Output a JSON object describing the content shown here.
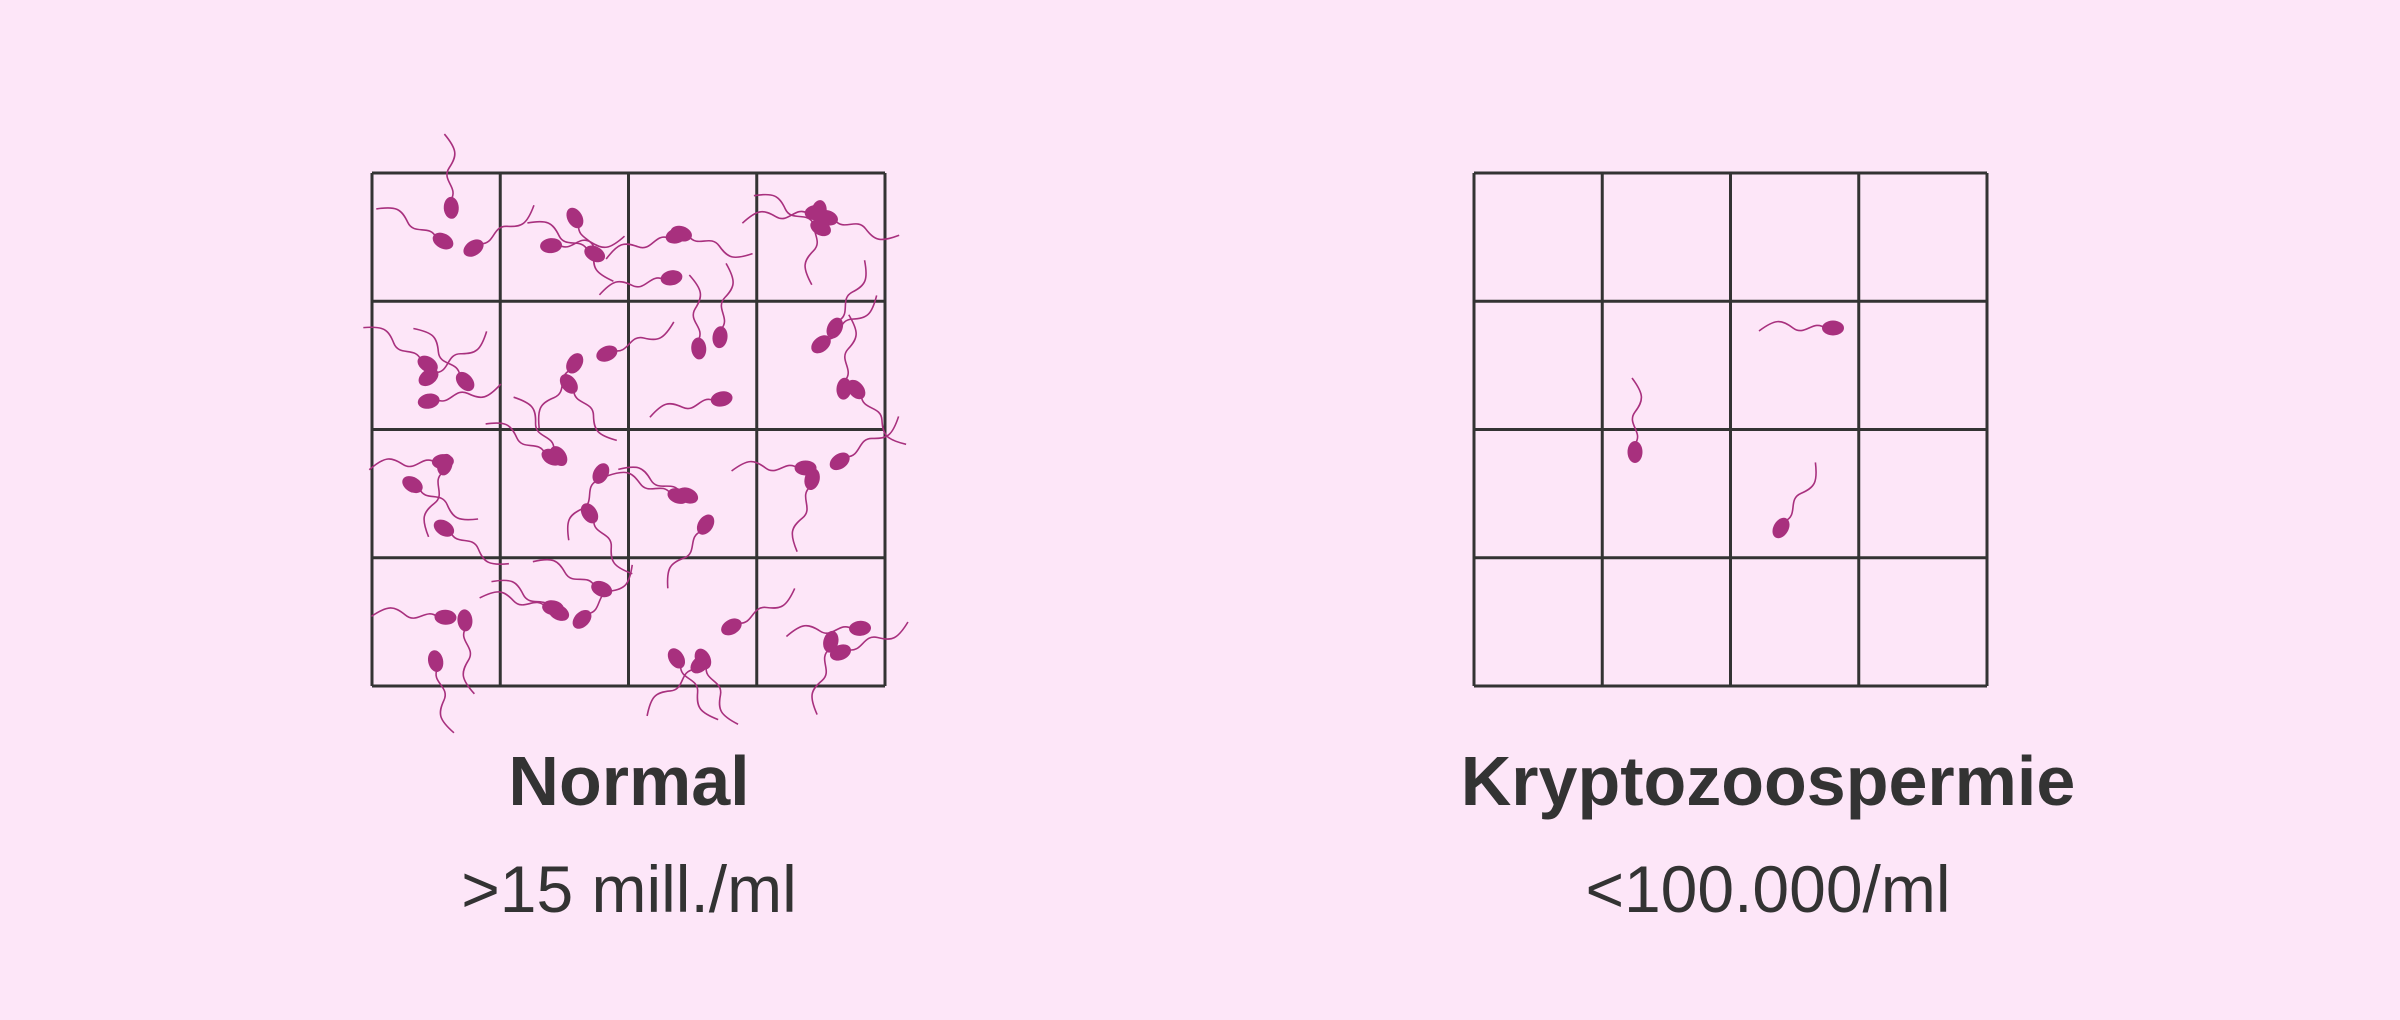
{
  "panels": [
    {
      "title": "Normal",
      "subtitle": ">15 mill./ml"
    },
    {
      "title": "Kryptozoospermie",
      "subtitle": "<100.000/ml"
    }
  ]
}
